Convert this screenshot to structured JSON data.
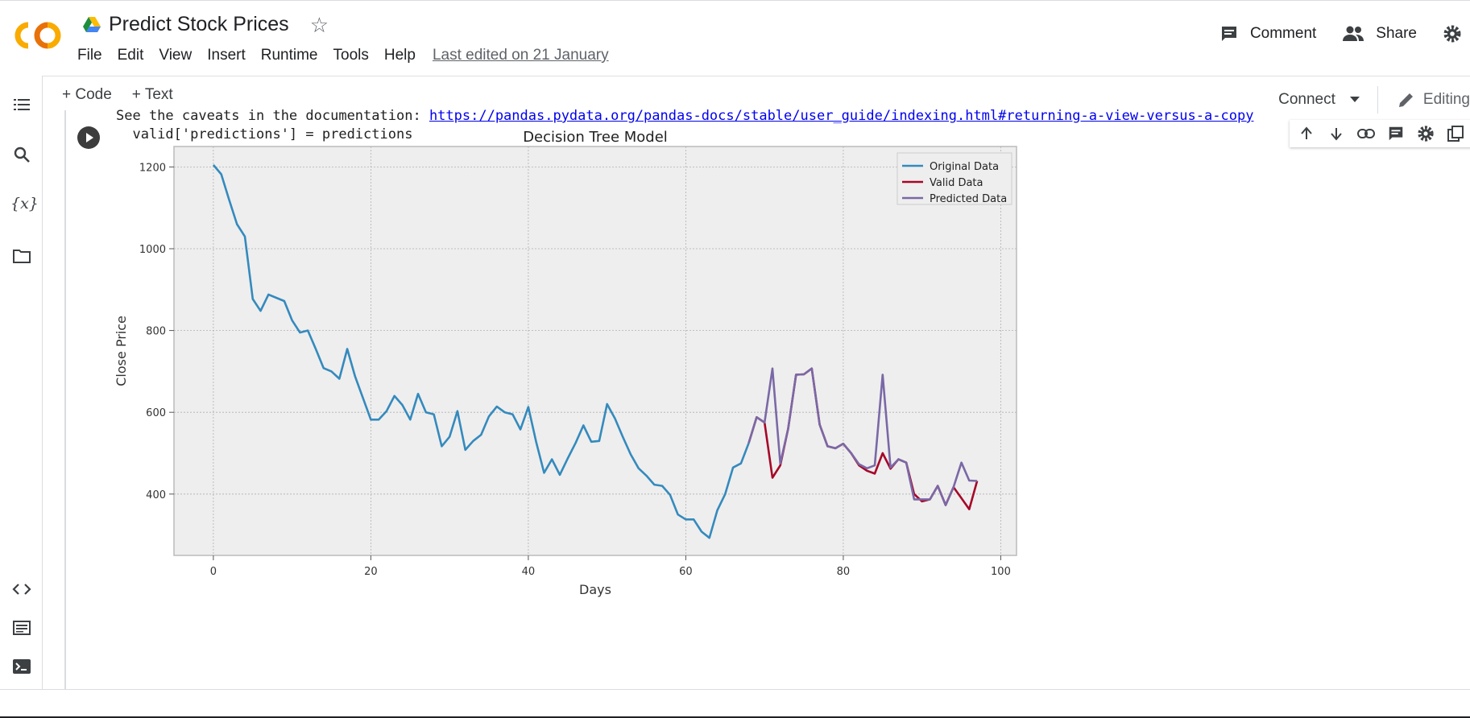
{
  "header": {
    "doc_title": "Predict Stock Prices",
    "menu": [
      "File",
      "Edit",
      "View",
      "Insert",
      "Runtime",
      "Tools",
      "Help"
    ],
    "last_edited": "Last edited on 21 January",
    "comment_label": "Comment",
    "share_label": "Share"
  },
  "toolbar": {
    "code_label": "+ Code",
    "text_label": "+ Text",
    "connect_label": "Connect",
    "editing_label": "Editing"
  },
  "cell": {
    "output_prefix": "See the caveats in the documentation: ",
    "output_link": "https://pandas.pydata.org/pandas-docs/stable/user_guide/indexing.html#returning-a-view-versus-a-copy",
    "output_line2": "  valid['predictions'] = predictions"
  },
  "colors": {
    "original": "#348abd",
    "valid": "#a60628",
    "predicted": "#7a68a6",
    "plot_bg": "#eeeeee"
  },
  "chart_data": {
    "type": "line",
    "title": "Decision Tree Model",
    "xlabel": "Days",
    "ylabel": "Close Price",
    "xlim": [
      -5,
      102
    ],
    "ylim": [
      250,
      1250
    ],
    "xticks": [
      0,
      20,
      40,
      60,
      80,
      100
    ],
    "yticks": [
      400,
      600,
      800,
      1000,
      1200
    ],
    "grid": true,
    "legend_position": "top-right",
    "series": [
      {
        "name": "Original Data",
        "x": [
          0,
          1,
          2,
          3,
          4,
          5,
          6,
          7,
          8,
          9,
          10,
          11,
          12,
          13,
          14,
          15,
          16,
          17,
          18,
          19,
          20,
          21,
          22,
          23,
          24,
          25,
          26,
          27,
          28,
          29,
          30,
          31,
          32,
          33,
          34,
          35,
          36,
          37,
          38,
          39,
          40,
          41,
          42,
          43,
          44,
          45,
          46,
          47,
          48,
          49,
          50,
          51,
          52,
          53,
          54,
          55,
          56,
          57,
          58,
          59,
          60,
          61,
          62,
          63,
          64,
          65,
          66,
          67,
          68
        ],
        "values": [
          1205,
          1182,
          1120,
          1060,
          1030,
          877,
          848,
          888,
          880,
          872,
          825,
          795,
          800,
          755,
          708,
          700,
          682,
          755,
          688,
          635,
          582,
          582,
          603,
          640,
          618,
          582,
          645,
          600,
          595,
          517,
          540,
          603,
          508,
          530,
          545,
          590,
          614,
          600,
          595,
          558,
          613,
          527,
          452,
          485,
          447,
          487,
          525,
          568,
          528,
          530,
          620,
          585,
          540,
          497,
          463,
          445,
          423,
          420,
          398,
          350,
          338,
          338,
          308,
          293,
          360,
          400,
          465,
          475,
          525
        ]
      },
      {
        "name": "Valid Data",
        "x": [
          68,
          69,
          70,
          71,
          72,
          73,
          74,
          75,
          76,
          77,
          78,
          79,
          80,
          81,
          82,
          83,
          84,
          85,
          86,
          87,
          88,
          89,
          90,
          91,
          92,
          93,
          94,
          95,
          96,
          97
        ],
        "values": [
          525,
          588,
          575,
          440,
          470,
          560,
          692,
          693,
          707,
          570,
          517,
          512,
          523,
          500,
          470,
          457,
          450,
          500,
          462,
          485,
          477,
          400,
          382,
          387,
          420,
          373,
          417,
          390,
          363,
          432
        ]
      },
      {
        "name": "Predicted Data",
        "x": [
          68,
          69,
          70,
          71,
          72,
          73,
          74,
          75,
          76,
          77,
          78,
          79,
          80,
          81,
          82,
          83,
          84,
          85,
          86,
          87,
          88,
          89,
          90,
          91,
          92,
          93,
          94,
          95,
          96,
          97
        ],
        "values": [
          525,
          588,
          575,
          707,
          475,
          560,
          692,
          693,
          707,
          570,
          517,
          512,
          523,
          500,
          473,
          463,
          470,
          692,
          465,
          485,
          477,
          387,
          387,
          387,
          420,
          373,
          417,
          477,
          433,
          432
        ]
      }
    ]
  }
}
